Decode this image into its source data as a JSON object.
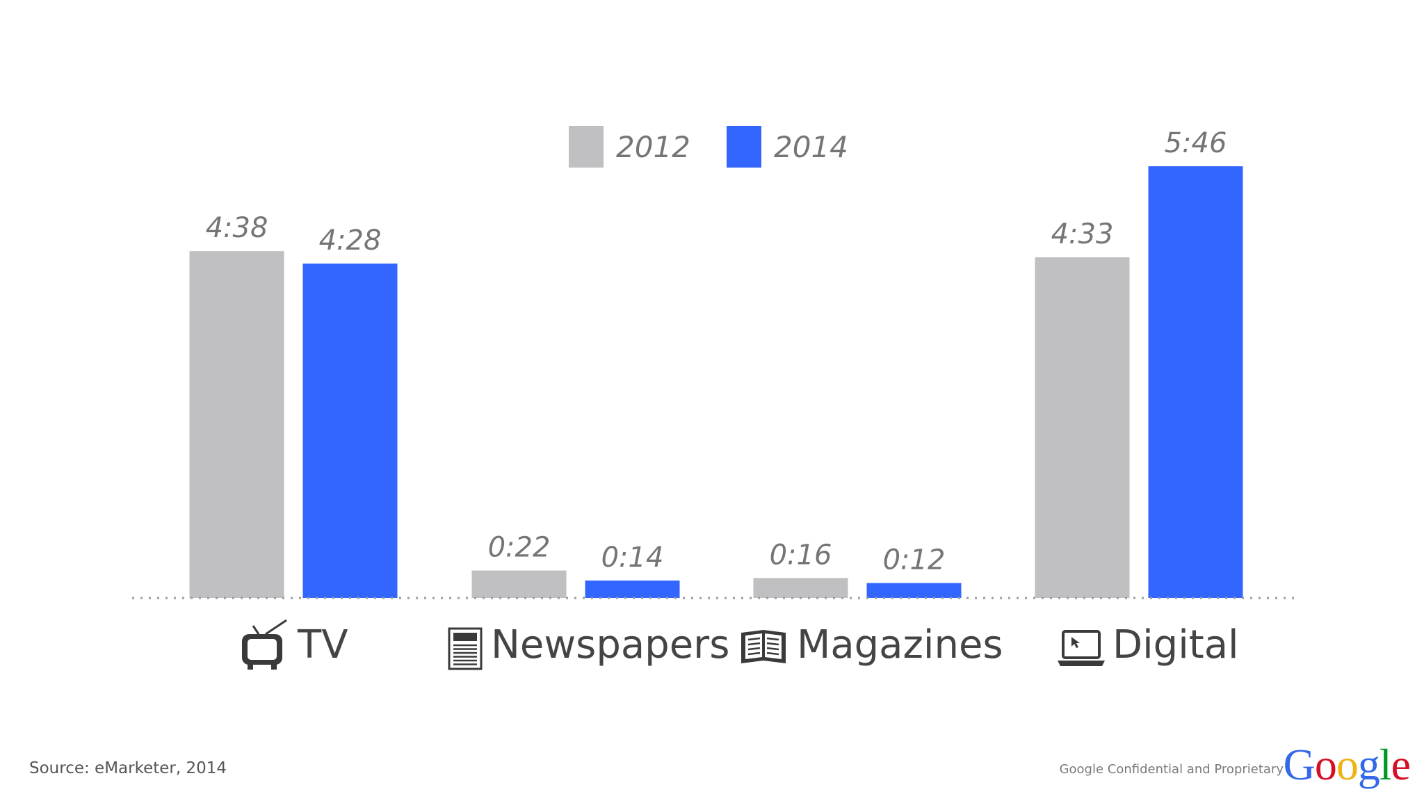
{
  "chart_data": {
    "type": "bar",
    "categories": [
      "TV",
      "Newspapers",
      "Magazines",
      "Digital"
    ],
    "series": [
      {
        "name": "2012",
        "color": "#c0bfc1",
        "values_minutes": [
          278,
          22,
          16,
          273
        ],
        "labels": [
          "4:38",
          "0:22",
          "0:16",
          "4:33"
        ]
      },
      {
        "name": "2014",
        "color": "#3366ff",
        "values_minutes": [
          268,
          14,
          12,
          346
        ],
        "labels": [
          "4:28",
          "0:14",
          "0:12",
          "5:46"
        ]
      }
    ],
    "category_icons": [
      "tv-icon",
      "newspaper-icon",
      "book-icon",
      "laptop-icon"
    ],
    "ylim": [
      0,
      360
    ],
    "grid": false,
    "legend_position": "top-center"
  },
  "footer": {
    "source": "Source: eMarketer, 2014",
    "confidential": "Google Confidential and Proprietary",
    "logo_letters": [
      {
        "char": "G",
        "color": "#3369e8"
      },
      {
        "char": "o",
        "color": "#d50f25"
      },
      {
        "char": "o",
        "color": "#eeb211"
      },
      {
        "char": "g",
        "color": "#3369e8"
      },
      {
        "char": "l",
        "color": "#009925"
      },
      {
        "char": "e",
        "color": "#d50f25"
      }
    ]
  }
}
